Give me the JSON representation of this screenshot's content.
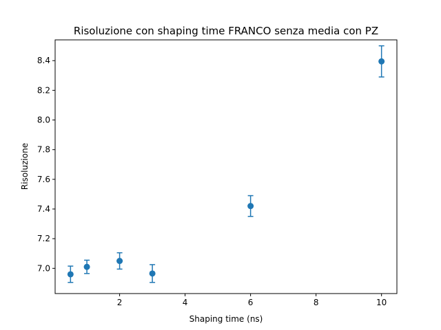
{
  "chart_data": {
    "type": "scatter",
    "title": "Risoluzione con shaping time FRANCO senza media con PZ",
    "xlabel": "Shaping time (ns)",
    "ylabel": "Risoluzione",
    "xlim": [
      0.03,
      10.47
    ],
    "ylim": [
      6.83,
      8.54
    ],
    "x_ticks": [
      2,
      4,
      6,
      8,
      10
    ],
    "y_ticks": [
      7.0,
      7.2,
      7.4,
      7.6,
      7.8,
      8.0,
      8.2,
      8.4
    ],
    "x_tick_labels": [
      "2",
      "4",
      "6",
      "8",
      "10"
    ],
    "y_tick_labels": [
      "7.0",
      "7.2",
      "7.4",
      "7.6",
      "7.8",
      "8.0",
      "8.2",
      "8.4"
    ],
    "grid": false,
    "color": "#1f77b4",
    "points": [
      {
        "x": 0.5,
        "y": 6.96,
        "yerr": 0.055
      },
      {
        "x": 1,
        "y": 7.01,
        "yerr": 0.045
      },
      {
        "x": 2,
        "y": 7.05,
        "yerr": 0.055
      },
      {
        "x": 3,
        "y": 6.965,
        "yerr": 0.06
      },
      {
        "x": 6,
        "y": 7.42,
        "yerr": 0.07
      },
      {
        "x": 10,
        "y": 8.395,
        "yerr": 0.105
      }
    ]
  }
}
